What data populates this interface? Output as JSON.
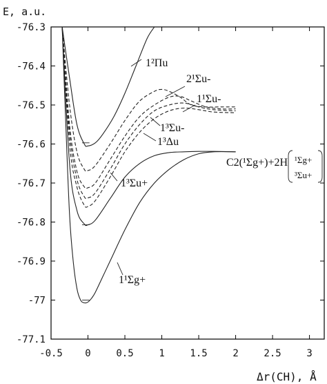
{
  "chart_data": {
    "type": "line",
    "ylabel": "E, a.u.",
    "xlabel": "Δr(CH), Å",
    "xlim": [
      -0.5,
      3.2
    ],
    "ylim": [
      -77.1,
      -76.3
    ],
    "xticks": [
      "-0.5",
      "0",
      "0.5",
      "1",
      "1.5",
      "2",
      "2.5",
      "3"
    ],
    "yticks": [
      "-76.3",
      "-76.4",
      "-76.5",
      "-76.6",
      "-76.7",
      "-76.8",
      "-76.9",
      "-77",
      "-77.1"
    ],
    "series": [
      {
        "name": "1²Πu",
        "style": "solid",
        "x": [
          -0.35,
          -0.25,
          -0.15,
          -0.05,
          0.0,
          0.1,
          0.2,
          0.35,
          0.5,
          0.65,
          0.8,
          0.9
        ],
        "y": [
          -76.25,
          -76.43,
          -76.55,
          -76.6,
          -76.605,
          -76.597,
          -76.575,
          -76.53,
          -76.47,
          -76.4,
          -76.33,
          -76.29
        ]
      },
      {
        "name": "2¹Σu-",
        "style": "dashed",
        "x": [
          -0.35,
          -0.25,
          -0.15,
          -0.05,
          0.0,
          0.1,
          0.3,
          0.5,
          0.7,
          0.9,
          1.0,
          1.1,
          1.25,
          1.4,
          1.6,
          1.8,
          2.0
        ],
        "y": [
          -76.3,
          -76.5,
          -76.62,
          -76.665,
          -76.668,
          -76.655,
          -76.6,
          -76.54,
          -76.49,
          -76.465,
          -76.46,
          -76.465,
          -76.48,
          -76.5,
          -76.505,
          -76.505,
          -76.505
        ]
      },
      {
        "name": "1¹Σu-",
        "style": "dashed",
        "x": [
          -0.35,
          -0.25,
          -0.15,
          -0.05,
          0.0,
          0.1,
          0.3,
          0.5,
          0.7,
          0.9,
          1.1,
          1.25,
          1.4,
          1.6,
          1.8,
          2.0
        ],
        "y": [
          -76.3,
          -76.55,
          -76.67,
          -76.71,
          -76.712,
          -76.7,
          -76.64,
          -76.58,
          -76.53,
          -76.5,
          -76.48,
          -76.478,
          -76.49,
          -76.505,
          -76.51,
          -76.51
        ]
      },
      {
        "name": "1³Σu-",
        "style": "dashed",
        "x": [
          -0.35,
          -0.25,
          -0.15,
          -0.05,
          0.0,
          0.1,
          0.3,
          0.5,
          0.7,
          0.9,
          1.1,
          1.3,
          1.5,
          1.7,
          2.0
        ],
        "y": [
          -76.3,
          -76.57,
          -76.69,
          -76.735,
          -76.738,
          -76.725,
          -76.665,
          -76.6,
          -76.55,
          -76.515,
          -76.5,
          -76.495,
          -76.505,
          -76.512,
          -76.515
        ]
      },
      {
        "name": "1³Δu",
        "style": "dashed",
        "x": [
          -0.35,
          -0.25,
          -0.15,
          -0.05,
          0.0,
          0.1,
          0.3,
          0.5,
          0.7,
          0.9,
          1.1,
          1.3,
          1.5,
          1.7,
          2.0
        ],
        "y": [
          -76.3,
          -76.6,
          -76.71,
          -76.757,
          -76.76,
          -76.745,
          -76.685,
          -76.62,
          -76.57,
          -76.535,
          -76.515,
          -76.508,
          -76.512,
          -76.518,
          -76.52
        ]
      },
      {
        "name": "1³Σu+",
        "style": "solid",
        "x": [
          -0.35,
          -0.25,
          -0.15,
          -0.05,
          0.0,
          0.1,
          0.3,
          0.5,
          0.7,
          0.9,
          1.1,
          1.3,
          1.5,
          1.7,
          2.0
        ],
        "y": [
          -76.3,
          -76.65,
          -76.77,
          -76.805,
          -76.807,
          -76.795,
          -76.74,
          -76.685,
          -76.65,
          -76.63,
          -76.622,
          -76.62,
          -76.619,
          -76.619,
          -76.62
        ]
      },
      {
        "name": "1¹Σg+",
        "style": "solid",
        "x": [
          -0.35,
          -0.3,
          -0.25,
          -0.2,
          -0.15,
          -0.1,
          -0.05,
          0.0,
          0.05,
          0.1,
          0.2,
          0.3,
          0.5,
          0.7,
          0.9,
          1.1,
          1.3,
          1.5,
          1.7,
          2.0
        ],
        "y": [
          -76.3,
          -76.55,
          -76.78,
          -76.9,
          -76.97,
          -77.0,
          -77.007,
          -77.005,
          -76.995,
          -76.98,
          -76.94,
          -76.9,
          -76.82,
          -76.75,
          -76.7,
          -76.665,
          -76.64,
          -76.625,
          -76.62,
          -76.62
        ]
      }
    ],
    "annotations": {
      "asymptote": "C2(¹Σg+)+2H",
      "bracket_top": "¹Σg+",
      "bracket_bottom": "³Σu+"
    }
  }
}
